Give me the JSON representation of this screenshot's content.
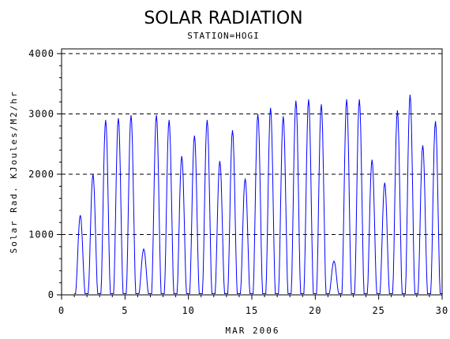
{
  "chart_data": {
    "type": "line",
    "title": "SOLAR RADIATION",
    "subtitle": "STATION=HOGI",
    "xlabel": "MAR 2006",
    "ylabel": "Solar Rad. KJoules/M2/hr",
    "xlim": [
      0,
      30
    ],
    "ylim": [
      0,
      4000
    ],
    "x_ticks": [
      0,
      5,
      10,
      15,
      20,
      25,
      30
    ],
    "y_ticks": [
      0,
      1000,
      2000,
      3000,
      4000
    ],
    "x_tick_labels": [
      "0",
      "5",
      "10",
      "15",
      "20",
      "25",
      "30"
    ],
    "y_tick_labels": [
      "0",
      "1000",
      "2000",
      "3000",
      "4000"
    ],
    "gridlines": "horizontal dashed",
    "line_color": "#0000ff",
    "series": [
      {
        "daily_peaks": [
          {
            "day": 1,
            "peak": 1320
          },
          {
            "day": 2,
            "peak": 2000
          },
          {
            "day": 3,
            "peak": 2900
          },
          {
            "day": 4,
            "peak": 2930
          },
          {
            "day": 5,
            "peak": 2980
          },
          {
            "day": 6,
            "peak": 760
          },
          {
            "day": 7,
            "peak": 2980
          },
          {
            "day": 8,
            "peak": 2900
          },
          {
            "day": 9,
            "peak": 2300
          },
          {
            "day": 10,
            "peak": 2640
          },
          {
            "day": 11,
            "peak": 2900
          },
          {
            "day": 12,
            "peak": 2220
          },
          {
            "day": 13,
            "peak": 2730
          },
          {
            "day": 14,
            "peak": 1930
          },
          {
            "day": 15,
            "peak": 3000
          },
          {
            "day": 16,
            "peak": 3100
          },
          {
            "day": 17,
            "peak": 2960
          },
          {
            "day": 18,
            "peak": 3220
          },
          {
            "day": 19,
            "peak": 3240
          },
          {
            "day": 20,
            "peak": 3160
          },
          {
            "day": 21,
            "peak": 560
          },
          {
            "day": 22,
            "peak": 3240
          },
          {
            "day": 23,
            "peak": 3240
          },
          {
            "day": 24,
            "peak": 2240
          },
          {
            "day": 25,
            "peak": 1860
          },
          {
            "day": 26,
            "peak": 3060
          },
          {
            "day": 27,
            "peak": 3320
          },
          {
            "day": 28,
            "peak": 2480
          },
          {
            "day": 29,
            "peak": 2880
          }
        ]
      }
    ]
  }
}
